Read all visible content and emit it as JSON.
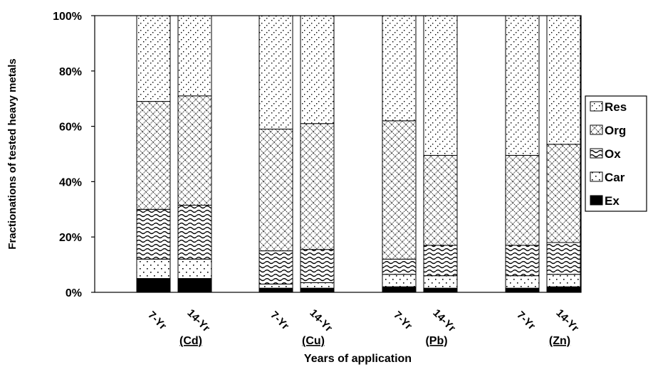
{
  "chart_data": {
    "type": "bar",
    "stacked": true,
    "title": "",
    "ylabel": "Fractionations of tested heavy metals",
    "xlabel": "Years of application",
    "ylim": [
      0,
      100
    ],
    "yticks": [
      "0%",
      "20%",
      "40%",
      "60%",
      "80%",
      "100%"
    ],
    "categories": [
      "7-Yr",
      "14-Yr",
      "7-Yr",
      "14-Yr",
      "7-Yr",
      "14-Yr",
      "7-Yr",
      "14-Yr"
    ],
    "groups": [
      "(Cd)",
      "(Cu)",
      "(Pb)",
      "(Zn)"
    ],
    "legend_position": "right",
    "series": [
      {
        "name": "Ex",
        "pattern": "solid",
        "values": [
          5,
          5,
          1.5,
          1.5,
          2,
          1.5,
          1.5,
          2
        ]
      },
      {
        "name": "Car",
        "pattern": "dots",
        "values": [
          7,
          7,
          1.5,
          2,
          4.5,
          4.5,
          4.5,
          4.5
        ]
      },
      {
        "name": "Ox",
        "pattern": "waves",
        "values": [
          18,
          19.5,
          12,
          12,
          5.5,
          11,
          11,
          11.5
        ]
      },
      {
        "name": "Org",
        "pattern": "diamond",
        "values": [
          39,
          39.5,
          44,
          45.5,
          50,
          32.5,
          32.5,
          35.5
        ]
      },
      {
        "name": "Res",
        "pattern": "diag",
        "values": [
          31,
          29,
          41,
          39,
          38,
          50.5,
          50.5,
          46.5
        ]
      }
    ]
  }
}
